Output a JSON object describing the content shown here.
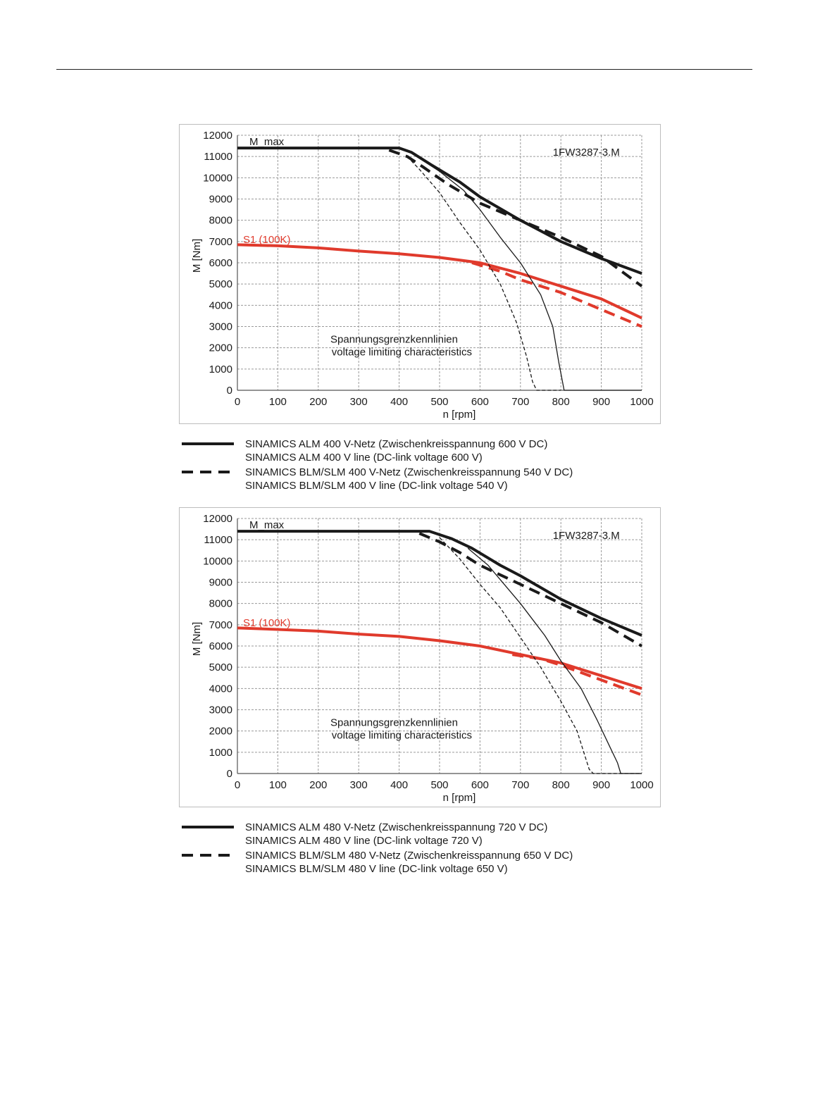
{
  "charts": [
    {
      "chart_data": {
        "type": "line",
        "model_label": "1FW3287-3.M",
        "ylabel": "M [Nm]",
        "xlabel": "n [rpm]",
        "xlim": [
          0,
          1000
        ],
        "ylim": [
          0,
          12000
        ],
        "x_ticks": [
          0,
          100,
          200,
          300,
          400,
          500,
          600,
          700,
          800,
          900,
          1000
        ],
        "y_ticks": [
          0,
          1000,
          2000,
          3000,
          4000,
          5000,
          6000,
          7000,
          8000,
          9000,
          10000,
          11000,
          12000
        ],
        "grid": true,
        "annotations": {
          "mmax": "M_max",
          "s1": "S1 (100K)",
          "voltage_de": "Spannungsgrenzkennlinien",
          "voltage_en": "voltage limiting characteristics"
        },
        "colors": {
          "black": "#1a1a1a",
          "red": "#e03a2c",
          "grid": "#9a9a9a"
        },
        "series": [
          {
            "color": "black",
            "style": "solid",
            "weight": "thick",
            "points": [
              [
                0,
                11400
              ],
              [
                400,
                11400
              ],
              [
                430,
                11200
              ],
              [
                480,
                10600
              ],
              [
                550,
                9800
              ],
              [
                600,
                9100
              ],
              [
                700,
                8000
              ],
              [
                800,
                7000
              ],
              [
                900,
                6200
              ],
              [
                1000,
                5500
              ]
            ]
          },
          {
            "color": "black",
            "style": "dashed",
            "weight": "thick",
            "points": [
              [
                375,
                11300
              ],
              [
                420,
                11000
              ],
              [
                460,
                10500
              ],
              [
                520,
                9700
              ],
              [
                600,
                8800
              ],
              [
                700,
                8000
              ],
              [
                800,
                7200
              ],
              [
                900,
                6300
              ],
              [
                1000,
                4900
              ]
            ]
          },
          {
            "color": "red",
            "style": "solid",
            "weight": "thick",
            "points": [
              [
                0,
                6850
              ],
              [
                100,
                6800
              ],
              [
                200,
                6700
              ],
              [
                300,
                6550
              ],
              [
                400,
                6420
              ],
              [
                500,
                6250
              ],
              [
                600,
                6000
              ],
              [
                700,
                5500
              ],
              [
                800,
                4900
              ],
              [
                900,
                4300
              ],
              [
                1000,
                3400
              ]
            ]
          },
          {
            "color": "red",
            "style": "dashed",
            "weight": "thick",
            "points": [
              [
                580,
                6000
              ],
              [
                650,
                5600
              ],
              [
                700,
                5200
              ],
              [
                800,
                4600
              ],
              [
                900,
                3800
              ],
              [
                1000,
                3000
              ]
            ]
          },
          {
            "color": "black",
            "style": "solid",
            "weight": "thin",
            "points": [
              [
                460,
                10800
              ],
              [
                500,
                10300
              ],
              [
                560,
                9400
              ],
              [
                600,
                8500
              ],
              [
                650,
                7200
              ],
              [
                700,
                6000
              ],
              [
                750,
                4500
              ],
              [
                780,
                3000
              ],
              [
                795,
                1300
              ],
              [
                808,
                0
              ],
              [
                1000,
                0
              ]
            ]
          },
          {
            "color": "black",
            "style": "dashed",
            "weight": "thin",
            "points": [
              [
                420,
                11000
              ],
              [
                450,
                10400
              ],
              [
                500,
                9300
              ],
              [
                550,
                7900
              ],
              [
                600,
                6600
              ],
              [
                650,
                5000
              ],
              [
                690,
                3200
              ],
              [
                715,
                1600
              ],
              [
                730,
                400
              ],
              [
                740,
                0
              ],
              [
                800,
                0
              ]
            ]
          }
        ]
      }
    },
    {
      "chart_data": {
        "type": "line",
        "model_label": "1FW3287-3.M",
        "ylabel": "M [Nm]",
        "xlabel": "n [rpm]",
        "xlim": [
          0,
          1000
        ],
        "ylim": [
          0,
          12000
        ],
        "x_ticks": [
          0,
          100,
          200,
          300,
          400,
          500,
          600,
          700,
          800,
          900,
          1000
        ],
        "y_ticks": [
          0,
          1000,
          2000,
          3000,
          4000,
          5000,
          6000,
          7000,
          8000,
          9000,
          10000,
          11000,
          12000
        ],
        "grid": true,
        "annotations": {
          "mmax": "M_max",
          "s1": "S1 (100K)",
          "voltage_de": "Spannungsgrenzkennlinien",
          "voltage_en": "voltage limiting characteristics"
        },
        "colors": {
          "black": "#1a1a1a",
          "red": "#e03a2c",
          "grid": "#9a9a9a"
        },
        "series": [
          {
            "color": "black",
            "style": "solid",
            "weight": "thick",
            "points": [
              [
                0,
                11400
              ],
              [
                475,
                11400
              ],
              [
                530,
                11050
              ],
              [
                580,
                10600
              ],
              [
                650,
                9800
              ],
              [
                700,
                9300
              ],
              [
                800,
                8200
              ],
              [
                900,
                7300
              ],
              [
                1000,
                6500
              ]
            ]
          },
          {
            "color": "black",
            "style": "dashed",
            "weight": "thick",
            "points": [
              [
                450,
                11300
              ],
              [
                500,
                10900
              ],
              [
                550,
                10400
              ],
              [
                600,
                9800
              ],
              [
                700,
                8900
              ],
              [
                800,
                8000
              ],
              [
                900,
                7100
              ],
              [
                1000,
                6000
              ]
            ]
          },
          {
            "color": "red",
            "style": "solid",
            "weight": "thick",
            "points": [
              [
                0,
                6850
              ],
              [
                100,
                6780
              ],
              [
                200,
                6700
              ],
              [
                300,
                6560
              ],
              [
                400,
                6450
              ],
              [
                500,
                6250
              ],
              [
                600,
                6000
              ],
              [
                700,
                5600
              ],
              [
                800,
                5200
              ],
              [
                900,
                4600
              ],
              [
                1000,
                4000
              ]
            ]
          },
          {
            "color": "red",
            "style": "dashed",
            "weight": "thick",
            "points": [
              [
                680,
                5600
              ],
              [
                750,
                5400
              ],
              [
                800,
                5100
              ],
              [
                900,
                4400
              ],
              [
                1000,
                3700
              ]
            ]
          },
          {
            "color": "black",
            "style": "solid",
            "weight": "thin",
            "points": [
              [
                570,
                10600
              ],
              [
                620,
                9800
              ],
              [
                700,
                8000
              ],
              [
                760,
                6500
              ],
              [
                800,
                5300
              ],
              [
                850,
                4000
              ],
              [
                890,
                2500
              ],
              [
                920,
                1300
              ],
              [
                940,
                500
              ],
              [
                948,
                0
              ],
              [
                1000,
                0
              ]
            ]
          },
          {
            "color": "black",
            "style": "dashed",
            "weight": "thin",
            "points": [
              [
                500,
                11100
              ],
              [
                550,
                10100
              ],
              [
                600,
                8900
              ],
              [
                650,
                7800
              ],
              [
                700,
                6400
              ],
              [
                750,
                5000
              ],
              [
                800,
                3400
              ],
              [
                840,
                2000
              ],
              [
                860,
                800
              ],
              [
                870,
                200
              ],
              [
                880,
                0
              ],
              [
                1000,
                0
              ]
            ]
          }
        ]
      }
    }
  ],
  "legends": [
    [
      {
        "style": "solid",
        "line1": "SINAMICS ALM  400 V-Netz (Zwischenkreisspannung 600 V DC)",
        "line2": "SINAMICS ALM  400 V line (DC-link voltage 600 V)"
      },
      {
        "style": "dashed",
        "line1": "SINAMICS BLM/SLM  400 V-Netz (Zwischenkreisspannung 540 V DC)",
        "line2": "SINAMICS BLM/SLM  400 V line (DC-link voltage 540 V)"
      }
    ],
    [
      {
        "style": "solid",
        "line1": "SINAMICS ALM  480 V-Netz (Zwischenkreisspannung 720 V DC)",
        "line2": "SINAMICS ALM  480 V line (DC-link voltage 720 V)"
      },
      {
        "style": "dashed",
        "line1": "SINAMICS BLM/SLM  480 V-Netz (Zwischenkreisspannung 650 V DC)",
        "line2": "SINAMICS BLM/SLM  480 V line (DC-link voltage 650 V)"
      }
    ]
  ]
}
